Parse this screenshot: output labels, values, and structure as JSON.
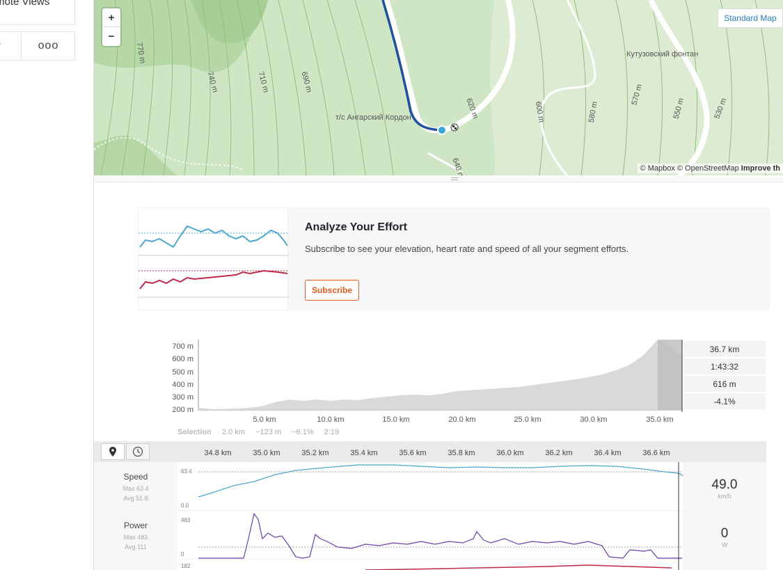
{
  "sidebar": {
    "remote_views_label": "mote Views",
    "arrow_glyph": "›",
    "more_glyph": "ooo"
  },
  "map": {
    "zoom_in": "+",
    "zoom_out": "−",
    "style_button": "Standard Map",
    "attribution": "© Mapbox © OpenStreetMap",
    "improve_link": "Improve th",
    "places": [
      "т/с Ангарский Кордон",
      "Кутузовский фонтан"
    ],
    "contours": [
      "770 m",
      "740 m",
      "710 m",
      "690 m",
      "620 m",
      "600 m",
      "580 m",
      "570 m",
      "550 m",
      "530 m",
      "640 m"
    ]
  },
  "upsell": {
    "title": "Analyze Your Effort",
    "text": "Subscribe to see your elevation, heart rate and speed of all your segment efforts.",
    "button": "Subscribe"
  },
  "elevation": {
    "y_ticks": [
      "700 m",
      "600 m",
      "500 m",
      "400 m",
      "300 m",
      "200 m"
    ],
    "x_ticks": [
      "5.0 km",
      "10.0 km",
      "15.0 km",
      "20.0 km",
      "25.0 km",
      "30.0 km",
      "35.0 km"
    ],
    "stats": [
      "36.7 km",
      "1:43:32",
      "616 m",
      "-4.1%"
    ],
    "selection": {
      "label": "Selection",
      "distance": "2.0 km",
      "elev": "−123 m",
      "grade": "−6.1%",
      "time": "2:19"
    }
  },
  "analysis": {
    "x_ticks": [
      "34.8 km",
      "35.0 km",
      "35.2 km",
      "35.4 km",
      "35.6 km",
      "35.8 km",
      "36.0 km",
      "36.2 km",
      "36.4 km",
      "36.6 km"
    ],
    "speed": {
      "name": "Speed",
      "max": "Max 63.4",
      "avg": "Avg 51.8",
      "value": "49.0",
      "unit": "km/h",
      "y_top": "63.4",
      "y_bottom": "0.0"
    },
    "power": {
      "name": "Power",
      "max": "Max 483",
      "avg": "Avg 111",
      "value": "0",
      "unit": "W",
      "y_top": "483",
      "y_bottom": "0"
    },
    "third": {
      "y_top": "182"
    }
  },
  "colors": {
    "brand": "#e05a1b",
    "link": "#2a7bc0",
    "route": "#1f4fa0",
    "speed": "#4aa8d0",
    "power": "#6a3fb0",
    "hr": "#c0284a"
  }
}
